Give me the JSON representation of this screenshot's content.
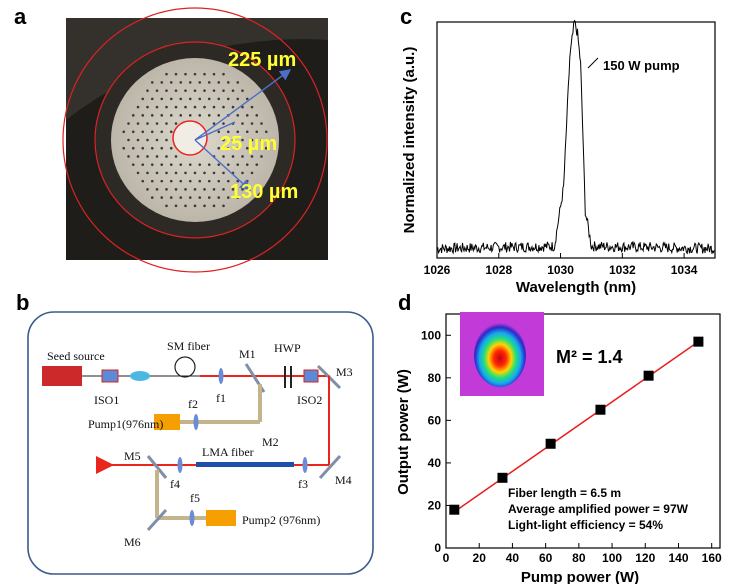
{
  "panel_labels": {
    "a": "a",
    "b": "b",
    "c": "c",
    "d": "d"
  },
  "panel_a": {
    "labels": {
      "outer": "225 µm",
      "core": "25 µm",
      "inner": "130 µm"
    }
  },
  "panel_b": {
    "components": {
      "seed": "Seed source",
      "iso1": "ISO1",
      "smfiber": "SM fiber",
      "m1": "M1",
      "hwp": "HWP",
      "m3": "M3",
      "f1": "f1",
      "f2": "f2",
      "iso2": "ISO2",
      "pump1": "Pump1(976nm)",
      "m2": "M2",
      "m5": "M5",
      "lma": "LMA fiber",
      "f4": "f4",
      "f3": "f3",
      "m4": "M4",
      "f5": "f5",
      "m6": "M6",
      "pump2": "Pump2 (976nm)"
    }
  },
  "panel_c": {
    "chart_data": {
      "type": "line",
      "xlabel": "Wavelength (nm)",
      "ylabel": "Normalized intensity (a.u.)",
      "xlim": [
        1026,
        1035
      ],
      "xticks": [
        1026,
        1028,
        1030,
        1032,
        1034
      ],
      "annotation": "150 W pump",
      "series": [
        {
          "x": [
            1026,
            1029.8,
            1030.1,
            1030.3,
            1030.45,
            1030.55,
            1030.65,
            1030.8,
            1031.0,
            1035
          ],
          "y": [
            0.04,
            0.05,
            0.3,
            0.85,
            1.0,
            0.95,
            0.82,
            0.2,
            0.05,
            0.04
          ]
        }
      ]
    }
  },
  "panel_d": {
    "chart_data": {
      "type": "scatter",
      "xlabel": "Pump power (W)",
      "ylabel": "Output power (W)",
      "xlim": [
        0,
        165
      ],
      "ylim": [
        0,
        110
      ],
      "xticks": [
        0,
        20,
        40,
        60,
        80,
        100,
        120,
        140,
        160
      ],
      "yticks": [
        0,
        20,
        40,
        60,
        80,
        100
      ],
      "series": [
        {
          "x": [
            5,
            34,
            63,
            93,
            122,
            152
          ],
          "y": [
            18,
            33,
            49,
            65,
            81,
            97
          ]
        }
      ],
      "fit": {
        "x": [
          5,
          152
        ],
        "y": [
          17,
          97
        ]
      },
      "m2_label": "M² = 1.4",
      "info": [
        "Fiber length = 6.5 m",
        "Average amplified power = 97W",
        "Light-light efficiency = 54%"
      ]
    }
  }
}
